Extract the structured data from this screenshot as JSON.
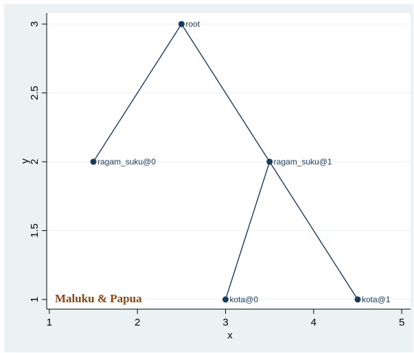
{
  "chart_data": {
    "type": "scatter",
    "xlabel": "x",
    "ylabel": "y",
    "xlim": [
      0.97,
      5.1
    ],
    "ylim": [
      0.93,
      3.08
    ],
    "xticks": [
      "1",
      "2",
      "3",
      "4",
      "5"
    ],
    "yticks": [
      "1",
      "1.5",
      "2",
      "2.5",
      "3"
    ],
    "grid": true,
    "annotation": "Maluku & Papua",
    "points": [
      {
        "label": "root",
        "x": 2.5,
        "y": 3
      },
      {
        "label": "ragam_suku@0",
        "x": 1.5,
        "y": 2
      },
      {
        "label": "ragam_suku@1",
        "x": 3.5,
        "y": 2
      },
      {
        "label": "kota@0",
        "x": 3,
        "y": 1
      },
      {
        "label": "kota@1",
        "x": 4.5,
        "y": 1
      }
    ],
    "edges": [
      [
        "root",
        "ragam_suku@0"
      ],
      [
        "root",
        "ragam_suku@1"
      ],
      [
        "ragam_suku@1",
        "kota@0"
      ],
      [
        "ragam_suku@1",
        "kota@1"
      ]
    ],
    "colors": {
      "marker": "#1a3a5c",
      "line": "#1a3a5c",
      "grid": "#eaf2f3",
      "background": "#eaf2f3",
      "plot": "#ffffff",
      "annotation": "#8b4513"
    }
  }
}
